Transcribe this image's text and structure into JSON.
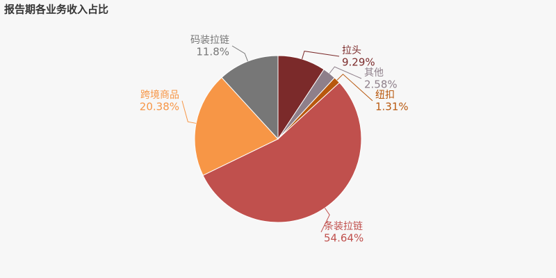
{
  "chart_data": {
    "type": "pie",
    "title": "报告期各业务收入占比",
    "categories": [
      "拉头",
      "其他",
      "纽扣",
      "条装拉链",
      "跨境商品",
      "码装拉链"
    ],
    "values": [
      9.29,
      2.58,
      1.31,
      54.64,
      20.38,
      11.8
    ],
    "value_labels": [
      "9.29%",
      "2.58%",
      "1.31%",
      "54.64%",
      "20.38%",
      "11.8%"
    ],
    "colors": [
      "#7b2a2a",
      "#8e7f8a",
      "#b8580e",
      "#c0504d",
      "#f79646",
      "#777777"
    ]
  }
}
